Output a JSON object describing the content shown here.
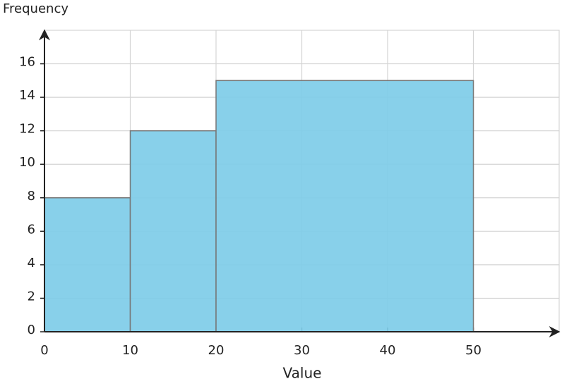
{
  "chart_data": {
    "type": "histogram",
    "x_label": "Value",
    "y_label": "Frequency",
    "bins": [
      0,
      10,
      20,
      50
    ],
    "counts": [
      8,
      12,
      15
    ],
    "color": "#7ecce8",
    "xlim": [
      0,
      60
    ],
    "xticks": [
      0,
      10,
      20,
      30,
      40,
      50
    ],
    "ylim": [
      0,
      18
    ],
    "yticks": [
      0,
      2,
      4,
      6,
      8,
      10,
      12,
      14,
      16
    ],
    "grid": true
  }
}
